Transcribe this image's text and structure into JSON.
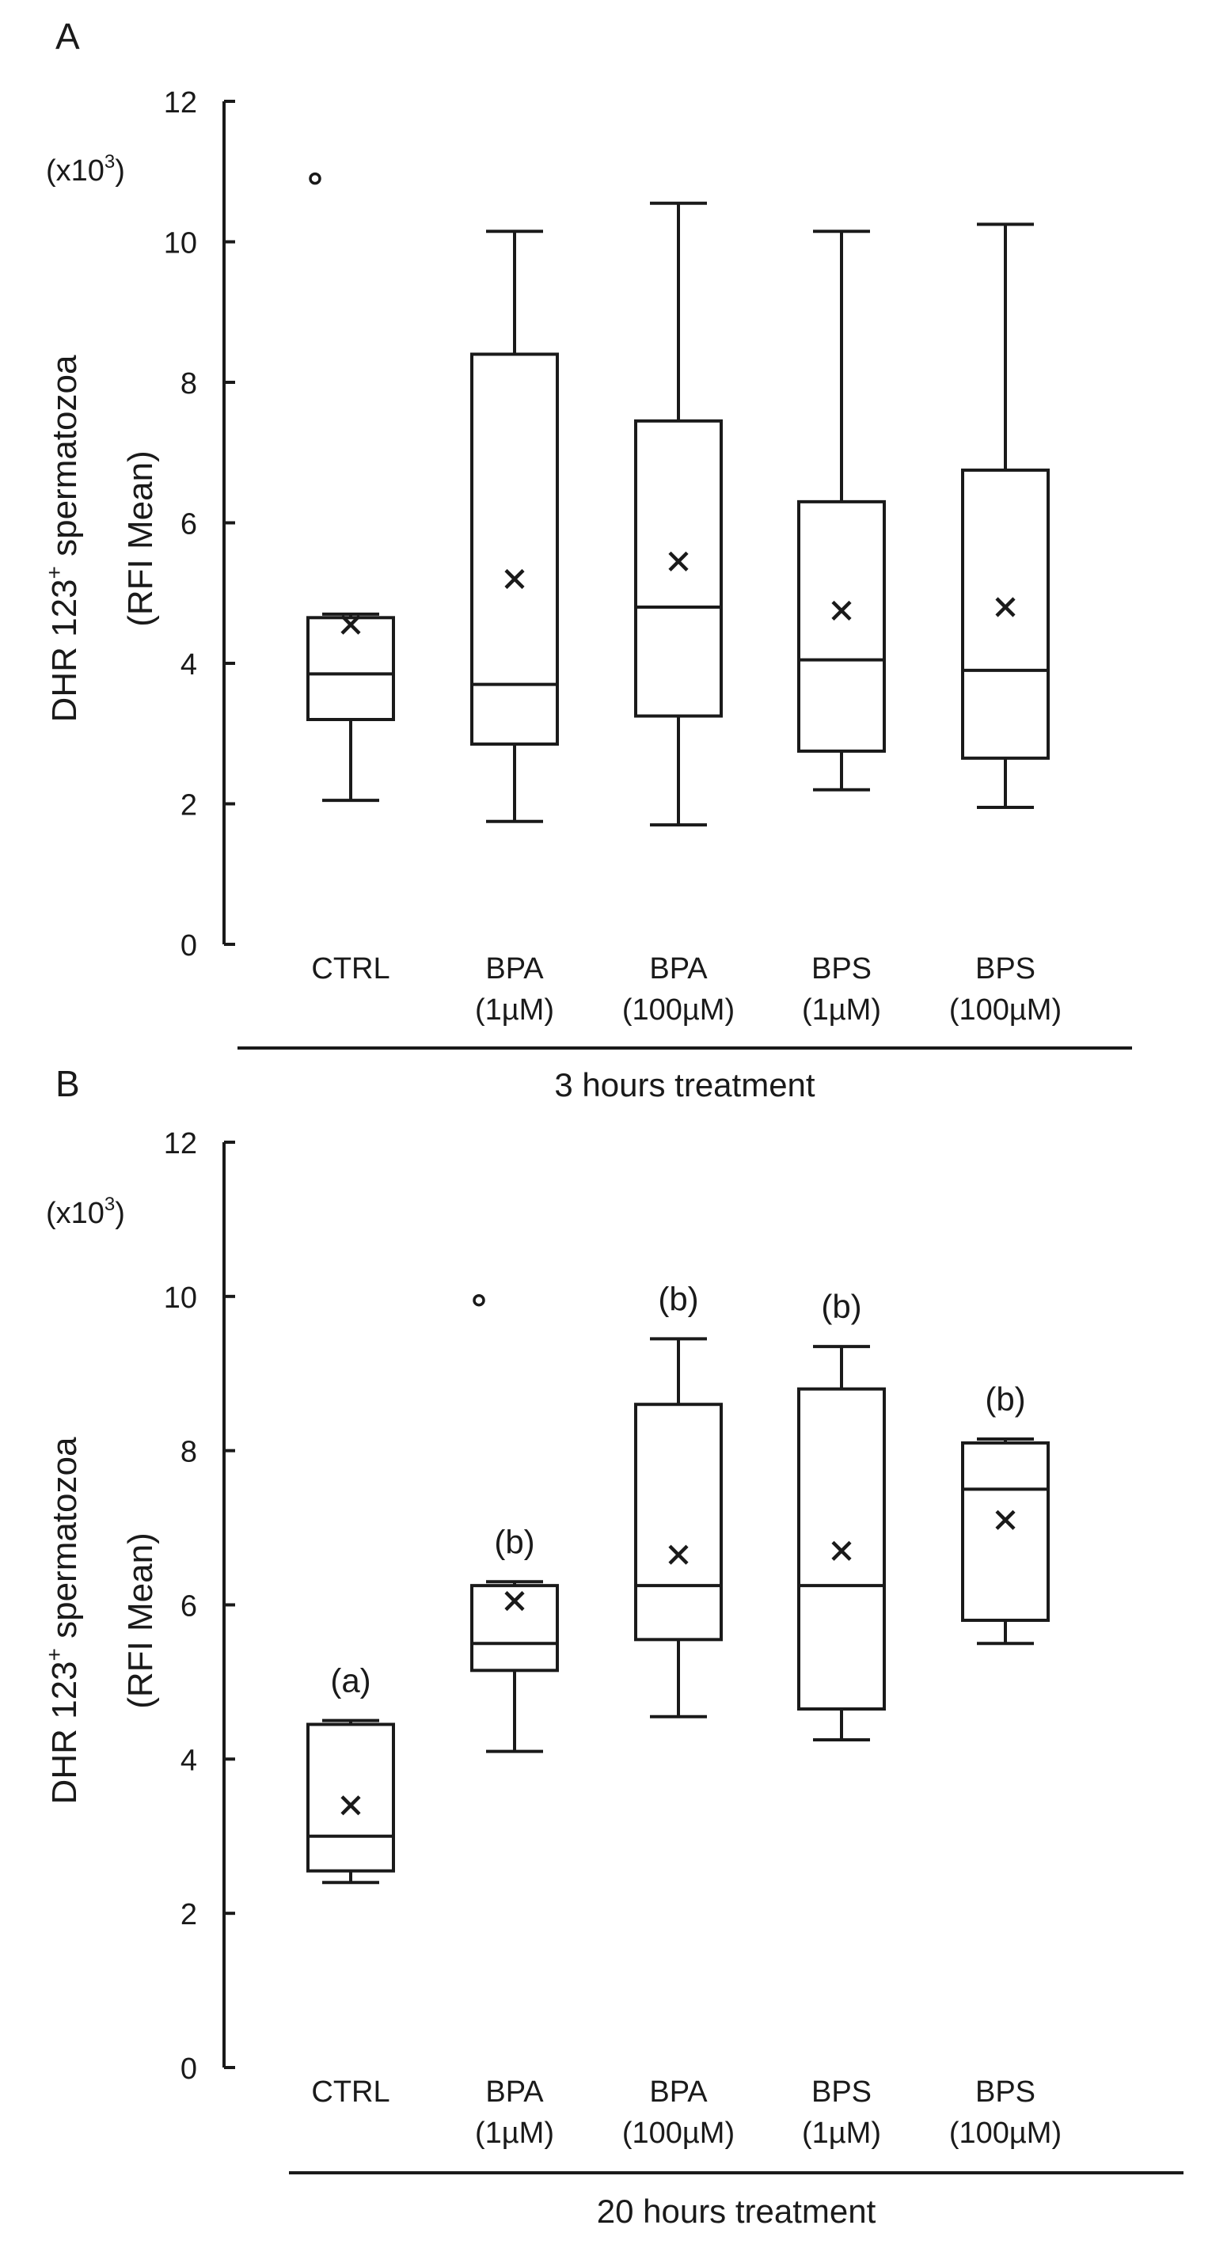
{
  "chart_data": [
    {
      "panel_label": "A",
      "type": "box",
      "ylabel_line1": "DHR 123",
      "ylabel_sup": "+",
      "ylabel_line1_end": " spermatozoa",
      "ylabel_line2": "(RFI Mean)",
      "multiplier_prefix": "(x10",
      "multiplier_sup": "3",
      "multiplier_suffix": ")",
      "xlabel": "3 hours treatment",
      "ylim": [
        0,
        12
      ],
      "yticks": [
        "0",
        "2",
        "4",
        "6",
        "8",
        "10",
        "12"
      ],
      "categories": [
        {
          "line1": "CTRL",
          "line2": ""
        },
        {
          "line1": "BPA",
          "line2": "(1µM)"
        },
        {
          "line1": "BPA",
          "line2": "(100µM)"
        },
        {
          "line1": "BPS",
          "line2": "(1µM)"
        },
        {
          "line1": "BPS",
          "line2": "(100µM)"
        }
      ],
      "boxes": [
        {
          "whisker_low": 2.05,
          "q1": 3.2,
          "median": 3.85,
          "q3": 4.65,
          "whisker_high": 4.7,
          "mean": 4.55,
          "outliers": [
            10.9
          ],
          "group_letter": ""
        },
        {
          "whisker_low": 1.75,
          "q1": 2.85,
          "median": 3.7,
          "q3": 8.4,
          "whisker_high": 10.15,
          "mean": 5.2,
          "outliers": [],
          "group_letter": ""
        },
        {
          "whisker_low": 1.7,
          "q1": 3.25,
          "median": 4.8,
          "q3": 7.45,
          "whisker_high": 10.55,
          "mean": 5.45,
          "outliers": [],
          "group_letter": ""
        },
        {
          "whisker_low": 2.2,
          "q1": 2.75,
          "median": 4.05,
          "q3": 6.3,
          "whisker_high": 10.15,
          "mean": 4.75,
          "outliers": [],
          "group_letter": ""
        },
        {
          "whisker_low": 1.95,
          "q1": 2.65,
          "median": 3.9,
          "q3": 6.75,
          "whisker_high": 10.25,
          "mean": 4.8,
          "outliers": [],
          "group_letter": ""
        }
      ]
    },
    {
      "panel_label": "B",
      "type": "box",
      "ylabel_line1": "DHR 123",
      "ylabel_sup": "+",
      "ylabel_line1_end": " spermatozoa",
      "ylabel_line2": "(RFI Mean)",
      "multiplier_prefix": "(x10",
      "multiplier_sup": "3",
      "multiplier_suffix": ")",
      "xlabel": "20 hours treatment",
      "ylim": [
        0,
        12
      ],
      "yticks": [
        "0",
        "2",
        "4",
        "6",
        "8",
        "10",
        "12"
      ],
      "categories": [
        {
          "line1": "CTRL",
          "line2": ""
        },
        {
          "line1": "BPA",
          "line2": "(1µM)"
        },
        {
          "line1": "BPA",
          "line2": "(100µM)"
        },
        {
          "line1": "BPS",
          "line2": "(1µM)"
        },
        {
          "line1": "BPS",
          "line2": "(100µM)"
        }
      ],
      "boxes": [
        {
          "whisker_low": 2.4,
          "q1": 2.55,
          "median": 3.0,
          "q3": 4.45,
          "whisker_high": 4.5,
          "mean": 3.4,
          "outliers": [],
          "group_letter": "(a)"
        },
        {
          "whisker_low": 4.1,
          "q1": 5.15,
          "median": 5.5,
          "q3": 6.25,
          "whisker_high": 6.3,
          "mean": 6.05,
          "outliers": [
            9.95
          ],
          "group_letter": "(b)"
        },
        {
          "whisker_low": 4.55,
          "q1": 5.55,
          "median": 6.25,
          "q3": 8.6,
          "whisker_high": 9.45,
          "mean": 6.65,
          "outliers": [],
          "group_letter": "(b)"
        },
        {
          "whisker_low": 4.25,
          "q1": 4.65,
          "median": 6.25,
          "q3": 8.8,
          "whisker_high": 9.35,
          "mean": 6.7,
          "outliers": [],
          "group_letter": "(b)"
        },
        {
          "whisker_low": 5.5,
          "q1": 5.8,
          "median": 7.5,
          "q3": 8.1,
          "whisker_high": 8.15,
          "mean": 7.1,
          "outliers": [],
          "group_letter": "(b)"
        }
      ]
    }
  ]
}
